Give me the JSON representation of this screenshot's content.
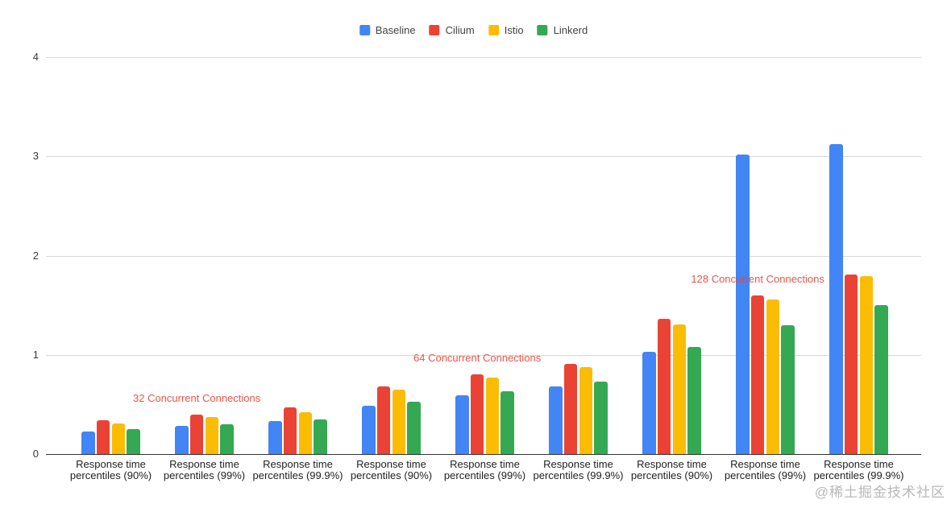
{
  "watermark": {
    "text": "@稀土掘金技术社区"
  },
  "legend": {
    "position": "top"
  },
  "chart_data": {
    "type": "bar",
    "title": "",
    "xlabel": "",
    "ylabel": "",
    "ylim": [
      0,
      4
    ],
    "yticks": [
      0,
      1,
      2,
      3,
      4
    ],
    "grid": true,
    "legend_position": "top",
    "categories": [
      "Response time percentiles (90%)",
      "Response time percentiles (99%)",
      "Response time percentiles (99.9%)",
      "Response time percentiles (90%)",
      "Response time percentiles (99%)",
      "Response time percentiles (99.9%)",
      "Response time percentiles (90%)",
      "Response time percentiles (99%)",
      "Response time percentiles (99.9%)"
    ],
    "series": [
      {
        "name": "Baseline",
        "color": "#4285F4",
        "values": [
          0.23,
          0.28,
          0.33,
          0.49,
          0.59,
          0.68,
          1.03,
          3.02,
          3.12
        ]
      },
      {
        "name": "Cilium",
        "color": "#EA4335",
        "values": [
          0.34,
          0.4,
          0.47,
          0.68,
          0.8,
          0.91,
          1.36,
          1.6,
          1.81
        ]
      },
      {
        "name": "Istio",
        "color": "#FBBC04",
        "values": [
          0.31,
          0.37,
          0.42,
          0.65,
          0.77,
          0.88,
          1.31,
          1.56,
          1.79
        ]
      },
      {
        "name": "Linkerd",
        "color": "#34A853",
        "values": [
          0.25,
          0.3,
          0.35,
          0.53,
          0.63,
          0.73,
          1.08,
          1.3,
          1.5
        ]
      }
    ],
    "annotations": [
      {
        "text": "32 Concurrent Connections",
        "group_index": 1,
        "series_index": 1,
        "color": "#EA4335"
      },
      {
        "text": "64 Concurrent Connections",
        "group_index": 4,
        "series_index": 1,
        "color": "#EA4335"
      },
      {
        "text": "128 Concurrent Connections",
        "group_index": 7,
        "series_index": 1,
        "color": "#EA4335"
      }
    ]
  }
}
